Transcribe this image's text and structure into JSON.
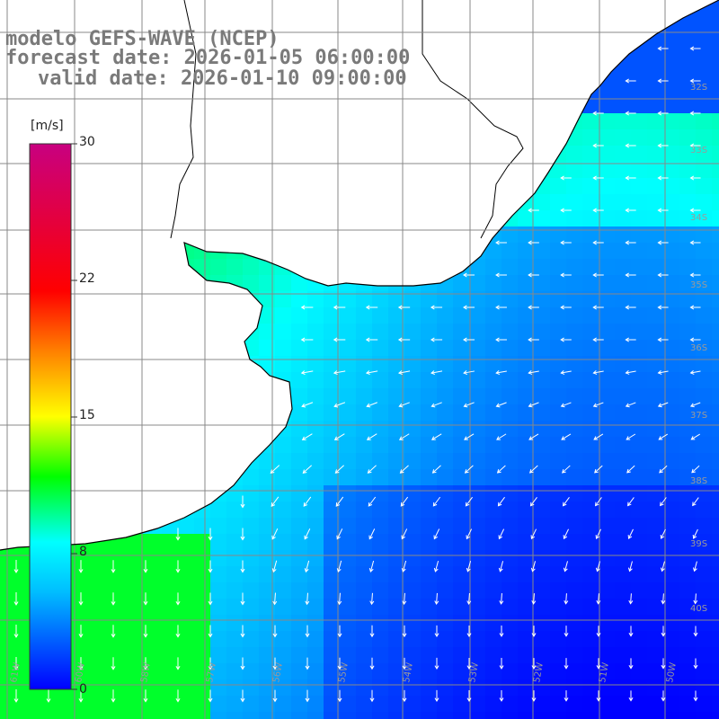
{
  "header": {
    "model": "modelo GEFS-WAVE (NCEP)",
    "forecast": "forecast date: 2026-01-05 06:00:00",
    "valid": "valid date: 2026-01-10 09:00:00"
  },
  "colorbar": {
    "unit": "[m/s]",
    "ticks": [
      "30",
      "22",
      "15",
      "8",
      "0"
    ],
    "tick_values": [
      30,
      22,
      15,
      8,
      0
    ],
    "colors": [
      "#0000ff",
      "#00bfff",
      "#00ffff",
      "#00ff00",
      "#ffff00",
      "#ff8000",
      "#ff0000",
      "#c80080"
    ]
  },
  "map": {
    "lat_labels": [
      "32S",
      "33S",
      "34S",
      "35S",
      "36S",
      "37S",
      "38S",
      "39S",
      "40S"
    ],
    "lon_labels": [
      "61W",
      "60W",
      "58W",
      "57W",
      "56W",
      "55W",
      "54W",
      "53W",
      "52W",
      "51W",
      "50W"
    ],
    "land_color": "#ffffff",
    "grid_color": "#888888",
    "coast_color": "#000000"
  }
}
